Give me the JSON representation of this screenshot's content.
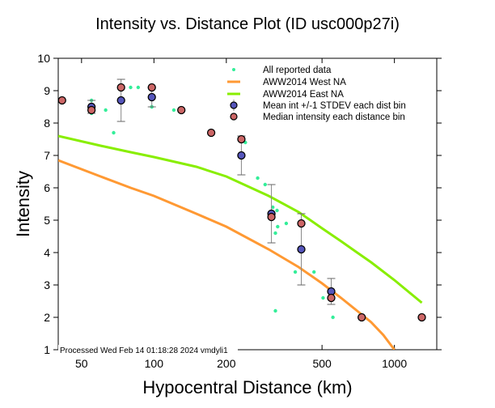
{
  "chart_data": {
    "type": "scatter",
    "title": "Intensity vs. Distance Plot (ID usc000p27i)",
    "xlabel": "Hypocentral Distance (km)",
    "ylabel": "Intensity",
    "xscale": "log",
    "xlim": [
      40,
      1500
    ],
    "ylim": [
      1,
      10
    ],
    "xticks": [
      50,
      100,
      200,
      500,
      1000
    ],
    "xtick_labels": [
      "50",
      "100",
      "200",
      "500",
      "1000"
    ],
    "yticks": [
      1,
      2,
      3,
      4,
      5,
      6,
      7,
      8,
      9,
      10
    ],
    "ytick_labels": [
      "1",
      "2",
      "3",
      "4",
      "5",
      "6",
      "7",
      "8",
      "9",
      "10"
    ],
    "legend_position": "top-right",
    "footer": "Processed Wed Feb 14 01:18:28 2024 vmdyli1",
    "series": [
      {
        "name": "All reported data",
        "kind": "points",
        "color": "#33ee99",
        "x": [
          55,
          55,
          55,
          63,
          68,
          80,
          86,
          98,
          98,
          121,
          240,
          270,
          290,
          312,
          320,
          325,
          327,
          355,
          387,
          463,
          505,
          555,
          320
        ],
        "y": [
          8.7,
          8.5,
          8.3,
          8.4,
          7.7,
          9.1,
          9.1,
          8.5,
          8.5,
          8.4,
          7.4,
          6.3,
          6.1,
          5.4,
          4.6,
          5.3,
          4.8,
          4.9,
          3.4,
          3.4,
          2.6,
          2.0,
          2.2
        ]
      },
      {
        "name": "AWW2014 West NA",
        "kind": "line",
        "color": "#ff9933",
        "x": [
          40,
          60,
          80,
          100,
          150,
          200,
          300,
          400,
          500,
          600,
          700,
          800,
          900,
          1000
        ],
        "y": [
          6.85,
          6.35,
          6.0,
          5.75,
          5.2,
          4.8,
          4.1,
          3.55,
          3.05,
          2.6,
          2.2,
          1.85,
          1.45,
          1.0
        ]
      },
      {
        "name": "AWW2014 East NA",
        "kind": "line",
        "color": "#88ee00",
        "x": [
          40,
          60,
          80,
          100,
          150,
          200,
          300,
          400,
          500,
          600,
          700,
          800,
          1000,
          1300
        ],
        "y": [
          7.6,
          7.3,
          7.1,
          6.95,
          6.65,
          6.35,
          5.75,
          5.25,
          4.75,
          4.35,
          4.0,
          3.7,
          3.15,
          2.45
        ]
      },
      {
        "name": "Mean int +/-1 STDEV each dist bin",
        "kind": "errorbar",
        "color": "#5555bb",
        "x": [
          55,
          73,
          98,
          231,
          308,
          410,
          546
        ],
        "y": [
          8.5,
          8.7,
          8.8,
          7.0,
          5.2,
          4.1,
          2.8
        ],
        "err": [
          0.2,
          0.65,
          0.3,
          0.6,
          0.9,
          1.1,
          0.4
        ]
      },
      {
        "name": "Median intensity each distance bin",
        "kind": "points",
        "color": "#cc6666",
        "x": [
          41.5,
          55,
          73,
          98,
          130,
          173,
          231,
          308,
          410,
          546,
          731,
          1300
        ],
        "y": [
          8.7,
          8.4,
          9.1,
          9.1,
          8.4,
          7.7,
          7.5,
          5.1,
          4.9,
          2.6,
          2.0,
          2.0
        ]
      }
    ]
  }
}
